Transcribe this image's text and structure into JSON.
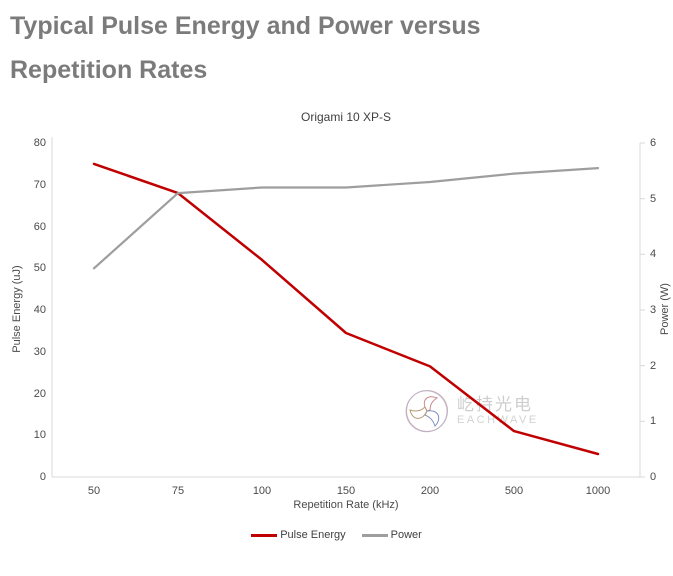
{
  "page": {
    "title_line1": "Typical Pulse Energy and Power versus",
    "title_line2": "Repetition Rates"
  },
  "chart_data": {
    "type": "line",
    "title": "Origami 10 XP-S",
    "categories": [
      "50",
      "75",
      "100",
      "150",
      "200",
      "500",
      "1000"
    ],
    "series": [
      {
        "name": "Pulse Energy",
        "axis": "left",
        "color": "#c00000",
        "width": 2.5,
        "values": [
          75,
          68,
          52,
          34.5,
          26.5,
          11,
          5.5
        ]
      },
      {
        "name": "Power",
        "axis": "right",
        "color": "#9e9e9e",
        "width": 2.2,
        "values": [
          3.75,
          5.1,
          5.2,
          5.2,
          5.3,
          5.45,
          5.55
        ]
      }
    ],
    "xlabel": "Repetition Rate (kHz)",
    "ylabel_left": "Pulse Energy (uJ)",
    "ylabel_right": "Power (W)",
    "ylim_left": [
      0,
      80
    ],
    "ylim_right": [
      0,
      6
    ],
    "yticks_left": [
      0,
      10,
      20,
      30,
      40,
      50,
      60,
      70,
      80
    ],
    "yticks_right": [
      0,
      1,
      2,
      3,
      4,
      5,
      6
    ],
    "grid": false,
    "legend_position": "bottom",
    "axis_line_color": "#d9d9d9"
  },
  "watermark": {
    "cn": "屹持光电",
    "en": "EACHWAVE"
  }
}
